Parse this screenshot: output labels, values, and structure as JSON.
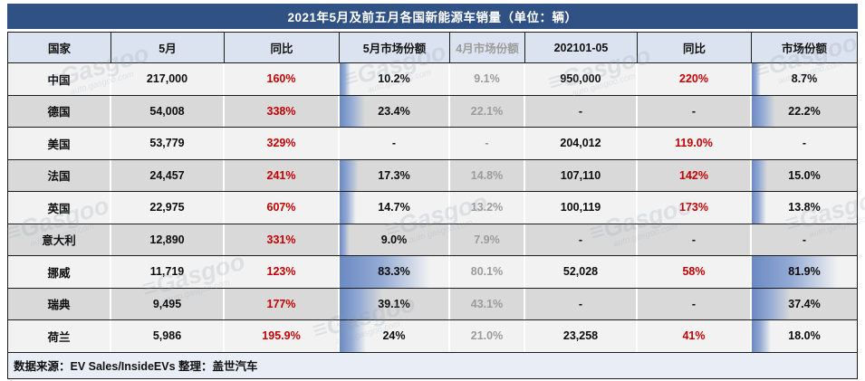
{
  "title": "2021年5月及前五月各国新能源车销量（单位：辆）",
  "colors": {
    "title_bg": "#2f5183",
    "header_bg": "#dce3f0",
    "row_odd_bg": "#f2f2f2",
    "row_even_bg": "#d9d9d9",
    "footer_bg": "#e9edf6",
    "accent_red": "#c40000",
    "muted_gray": "#9b9b9b",
    "bar_blue": "#6b89c2"
  },
  "chart_data": {
    "type": "table",
    "title": "2021年5月及前五月各国新能源车销量（单位：辆）",
    "columns": [
      {
        "id": "country",
        "label": "国家"
      },
      {
        "id": "may_sales",
        "label": "5月"
      },
      {
        "id": "may_yoy",
        "label": "同比"
      },
      {
        "id": "may_share",
        "label": "5月市场份额"
      },
      {
        "id": "apr_share",
        "label": "4月市场份额"
      },
      {
        "id": "ytd_sales",
        "label": "202101-05"
      },
      {
        "id": "ytd_yoy",
        "label": "同比"
      },
      {
        "id": "ytd_share",
        "label": "市场份额"
      }
    ],
    "bar_columns": [
      "may_share",
      "ytd_share"
    ],
    "bar_scale_max": 100,
    "rows": [
      {
        "country": "中国",
        "may_sales": "217,000",
        "may_yoy": "160%",
        "may_share": "10.2%",
        "apr_share": "9.1%",
        "ytd_sales": "950,000",
        "ytd_yoy": "220%",
        "ytd_share": "8.7%"
      },
      {
        "country": "德国",
        "may_sales": "54,008",
        "may_yoy": "338%",
        "may_share": "23.4%",
        "apr_share": "22.1%",
        "ytd_sales": "-",
        "ytd_yoy": "-",
        "ytd_share": "22.2%"
      },
      {
        "country": "美国",
        "may_sales": "53,779",
        "may_yoy": "329%",
        "may_share": "-",
        "apr_share": "-",
        "ytd_sales": "204,012",
        "ytd_yoy": "119.0%",
        "ytd_share": "-"
      },
      {
        "country": "法国",
        "may_sales": "24,457",
        "may_yoy": "241%",
        "may_share": "17.3%",
        "apr_share": "14.8%",
        "ytd_sales": "107,110",
        "ytd_yoy": "142%",
        "ytd_share": "15.0%"
      },
      {
        "country": "英国",
        "may_sales": "22,975",
        "may_yoy": "607%",
        "may_share": "14.7%",
        "apr_share": "13.2%",
        "ytd_sales": "100,119",
        "ytd_yoy": "173%",
        "ytd_share": "13.8%"
      },
      {
        "country": "意大利",
        "may_sales": "12,890",
        "may_yoy": "331%",
        "may_share": "9.0%",
        "apr_share": "7.9%",
        "ytd_sales": "-",
        "ytd_yoy": "-",
        "ytd_share": "-"
      },
      {
        "country": "挪威",
        "may_sales": "11,719",
        "may_yoy": "123%",
        "may_share": "83.3%",
        "apr_share": "80.1%",
        "ytd_sales": "52,028",
        "ytd_yoy": "58%",
        "ytd_share": "81.9%"
      },
      {
        "country": "瑞典",
        "may_sales": "9,495",
        "may_yoy": "177%",
        "may_share": "39.1%",
        "apr_share": "43.1%",
        "ytd_sales": "-",
        "ytd_yoy": "-",
        "ytd_share": "37.4%"
      },
      {
        "country": "荷兰",
        "may_sales": "5,986",
        "may_yoy": "195.9%",
        "may_share": "24%",
        "apr_share": "21.0%",
        "ytd_sales": "23,258",
        "ytd_yoy": "41%",
        "ytd_share": "18.0%"
      }
    ]
  },
  "footer": {
    "text": "数据来源：EV Sales/InsideEVs 整理：盖世汽车"
  },
  "watermark": {
    "logo": "≡",
    "brand": "Gasgoo",
    "url": "auto.gasgoo.com"
  }
}
